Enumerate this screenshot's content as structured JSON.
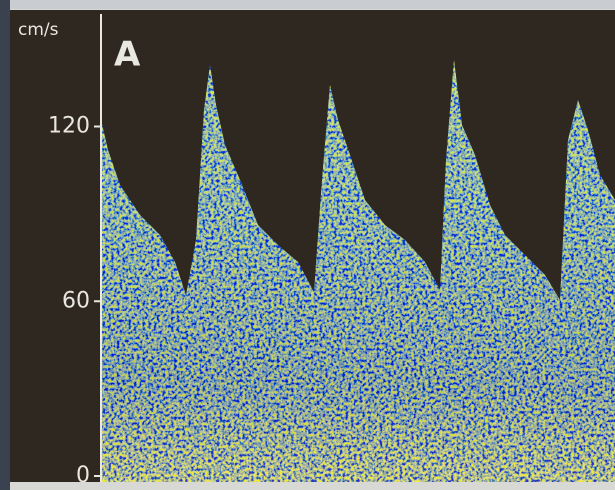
{
  "image": {
    "panel_label": "A",
    "unit": "cm/s",
    "ylim": [
      0,
      160
    ],
    "yticks": [
      0,
      60,
      120
    ]
  }
}
